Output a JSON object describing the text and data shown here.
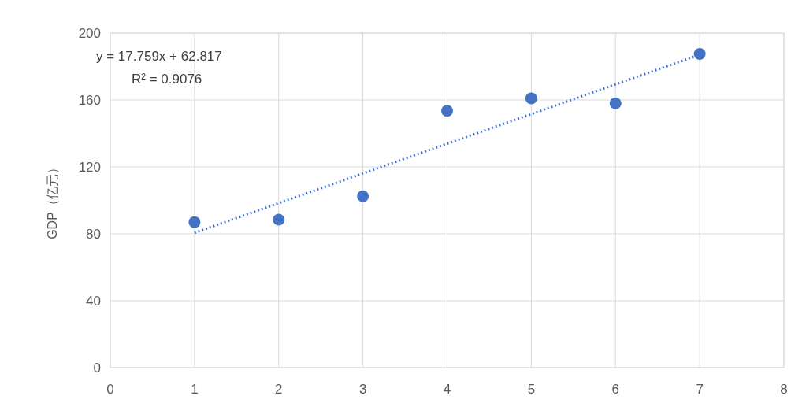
{
  "chart_data": {
    "type": "scatter",
    "ylabel": "GDP（亿元）",
    "xlim": [
      0,
      8
    ],
    "xticks": [
      0,
      1,
      2,
      3,
      4,
      5,
      6,
      7,
      8
    ],
    "ylim": [
      0,
      200
    ],
    "yticks": [
      0,
      40,
      80,
      120,
      160,
      200
    ],
    "grid": true,
    "series": [
      {
        "type": "scatter",
        "color": "#4472c4",
        "marker": "circle",
        "x": [
          1,
          2,
          3,
          4,
          5,
          6,
          7
        ],
        "values": [
          87,
          88.5,
          102.5,
          153.5,
          161,
          158,
          187.5
        ]
      },
      {
        "type": "line",
        "color": "#4472c4",
        "marker": "none",
        "line_style": "dotted",
        "x": [
          1,
          7
        ],
        "values": [
          80.6,
          187.1
        ]
      }
    ],
    "annotations": [
      "y = 17.759x + 62.817",
      "R² = 0.9076"
    ]
  }
}
